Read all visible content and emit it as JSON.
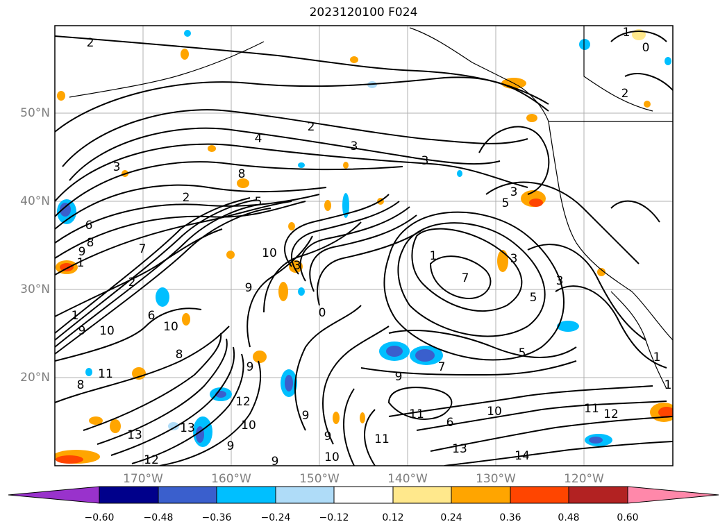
{
  "title": "2023120100 F024",
  "lat_labels": [
    "50°N",
    "40°N",
    "30°N",
    "20°N"
  ],
  "lon_labels": [
    "170°W",
    "160°W",
    "150°W",
    "140°W",
    "130°W",
    "120°W"
  ],
  "colorbar": {
    "ticks": [
      "−0.60",
      "−0.48",
      "−0.36",
      "−0.24",
      "−0.12",
      "0.12",
      "0.24",
      "0.36",
      "0.48",
      "0.60"
    ],
    "colors": [
      "#9932cc",
      "#00008b",
      "#3a5fcd",
      "#00bfff",
      "#afdcf8",
      "#ffffff",
      "#ffe88c",
      "#ffa500",
      "#ff4500",
      "#b22222",
      "#ff88aa"
    ]
  },
  "contour_labels": [
    "2",
    "2",
    "4",
    "3",
    "3",
    "3",
    "8",
    "5",
    "6",
    "8",
    "9",
    "1",
    "10",
    "7",
    "9",
    "3",
    "2",
    "2",
    "1",
    "6",
    "10",
    "9",
    "10",
    "0",
    "1",
    "7",
    "3",
    "3",
    "5",
    "3",
    "5",
    "11",
    "9",
    "9",
    "8",
    "5",
    "13",
    "13",
    "12",
    "12",
    "10",
    "9",
    "9",
    "9",
    "11",
    "11",
    "10",
    "6",
    "11",
    "10",
    "12",
    "13",
    "14",
    "7",
    "9",
    "8",
    "0",
    "1",
    "2",
    "1",
    "1"
  ]
}
